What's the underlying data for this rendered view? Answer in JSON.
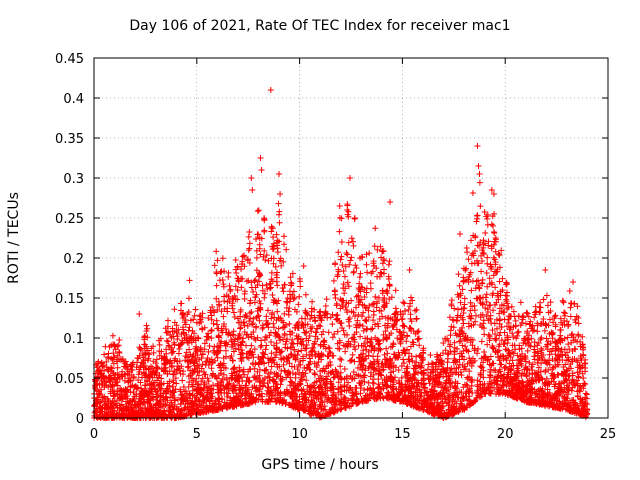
{
  "chart_data": {
    "type": "scatter",
    "title": "Day 106 of 2021, Rate Of TEC Index for receiver mac1",
    "xlabel": "GPS time / hours",
    "ylabel": "ROTI / TECUs",
    "xlim": [
      0,
      25
    ],
    "ylim": [
      0,
      0.45
    ],
    "xticks": [
      0,
      5,
      10,
      15,
      20,
      25
    ],
    "yticks": [
      0,
      0.05,
      0.1,
      0.15,
      0.2,
      0.25,
      0.3,
      0.35,
      0.4,
      0.45
    ],
    "xtick_labels": [
      "0",
      "5",
      "10",
      "15",
      "20",
      "25"
    ],
    "ytick_labels": [
      "0",
      "0.05",
      "0.1",
      "0.15",
      "0.2",
      "0.25",
      "0.3",
      "0.35",
      "0.4",
      "0.45"
    ],
    "grid": true,
    "marker": "+",
    "marker_color": "#ff0000",
    "envelope": {
      "description": "approximate upper envelope of the dense ROTI point cloud (hours, TECU/min)",
      "x": [
        0.0,
        0.5,
        1.0,
        1.5,
        2.0,
        2.5,
        3.0,
        3.5,
        4.0,
        4.5,
        5.0,
        5.5,
        6.0,
        6.5,
        7.0,
        7.5,
        8.0,
        8.5,
        9.0,
        9.5,
        10.0,
        10.5,
        11.0,
        11.5,
        12.0,
        12.5,
        13.0,
        13.5,
        14.0,
        14.5,
        15.0,
        15.5,
        16.0,
        16.5,
        17.0,
        17.5,
        18.0,
        18.5,
        19.0,
        19.5,
        20.0,
        20.5,
        21.0,
        21.5,
        22.0,
        22.5,
        23.0,
        23.5,
        24.0
      ],
      "y": [
        0.07,
        0.09,
        0.12,
        0.08,
        0.07,
        0.12,
        0.09,
        0.13,
        0.14,
        0.17,
        0.14,
        0.15,
        0.22,
        0.2,
        0.2,
        0.24,
        0.28,
        0.24,
        0.3,
        0.19,
        0.18,
        0.15,
        0.14,
        0.17,
        0.26,
        0.28,
        0.22,
        0.23,
        0.26,
        0.18,
        0.15,
        0.17,
        0.09,
        0.08,
        0.1,
        0.16,
        0.22,
        0.32,
        0.28,
        0.27,
        0.18,
        0.15,
        0.14,
        0.15,
        0.18,
        0.13,
        0.16,
        0.17,
        0.05
      ]
    },
    "baseline": {
      "description": "approximate lower edge of the dense point cloud (hours, TECU/min)",
      "x": [
        0.0,
        1.0,
        2.0,
        3.0,
        4.0,
        5.0,
        6.0,
        7.0,
        8.0,
        9.0,
        10.0,
        11.0,
        12.0,
        13.0,
        14.0,
        15.0,
        16.0,
        17.0,
        18.0,
        19.0,
        20.0,
        21.0,
        22.0,
        23.0,
        24.0
      ],
      "y": [
        0.0,
        0.0,
        0.0,
        0.0,
        0.0,
        0.005,
        0.01,
        0.015,
        0.02,
        0.02,
        0.01,
        0.0,
        0.01,
        0.02,
        0.025,
        0.02,
        0.01,
        0.0,
        0.01,
        0.03,
        0.03,
        0.02,
        0.015,
        0.01,
        0.0
      ]
    },
    "outliers": [
      {
        "x": 8.6,
        "y": 0.41
      },
      {
        "x": 8.1,
        "y": 0.325
      },
      {
        "x": 8.15,
        "y": 0.31
      },
      {
        "x": 7.65,
        "y": 0.3
      },
      {
        "x": 9.0,
        "y": 0.305
      },
      {
        "x": 9.05,
        "y": 0.28
      },
      {
        "x": 12.45,
        "y": 0.3
      },
      {
        "x": 18.65,
        "y": 0.34
      },
      {
        "x": 18.7,
        "y": 0.315
      },
      {
        "x": 18.75,
        "y": 0.305
      },
      {
        "x": 19.35,
        "y": 0.285
      },
      {
        "x": 19.45,
        "y": 0.28
      },
      {
        "x": 14.4,
        "y": 0.27
      },
      {
        "x": 11.95,
        "y": 0.265
      },
      {
        "x": 7.7,
        "y": 0.285
      },
      {
        "x": 17.8,
        "y": 0.23
      },
      {
        "x": 21.95,
        "y": 0.185
      },
      {
        "x": 15.35,
        "y": 0.185
      },
      {
        "x": 4.65,
        "y": 0.172
      },
      {
        "x": 2.2,
        "y": 0.13
      },
      {
        "x": 10.2,
        "y": 0.19
      },
      {
        "x": 23.3,
        "y": 0.17
      }
    ]
  }
}
